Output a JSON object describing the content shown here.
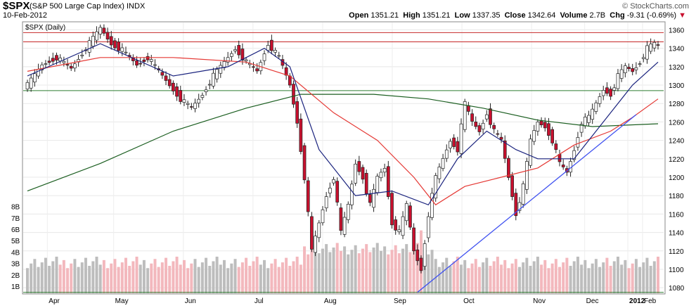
{
  "header": {
    "symbol": "$SPX",
    "description": "(S&P 500 Large Cap Index) INDX",
    "date": "10-Feb-2012",
    "brand": "© StockCharts.com",
    "open_label": "Open",
    "open": "1351.21",
    "high_label": "High",
    "high": "1351.21",
    "low_label": "Low",
    "low": "1337.35",
    "close_label": "Close",
    "close": "1342.64",
    "volume_label": "Volume",
    "volume": "2.7B",
    "chg_label": "Chg",
    "chg": "-9.31 (-0.69%)",
    "chg_arrow": "▼"
  },
  "chart_data": {
    "type": "candlestick",
    "title": "$SPX (Daily)",
    "y_ticks": [
      1080,
      1100,
      1120,
      1140,
      1160,
      1180,
      1200,
      1220,
      1240,
      1260,
      1280,
      1300,
      1320,
      1340,
      1360
    ],
    "ylim": [
      1074,
      1368
    ],
    "x_month_labels": [
      "Apr",
      "May",
      "Jun",
      "Jul",
      "Aug",
      "Sep",
      "Oct",
      "Nov",
      "Dec",
      "2012",
      "Feb"
    ],
    "volume_ticks": [
      "1B",
      "2B",
      "3B",
      "4B",
      "5B",
      "6B",
      "7B",
      "8B"
    ],
    "grid": true,
    "colors": {
      "up": "#ffffff",
      "down": "#c8102e",
      "ma_short": "#1a237e",
      "ma_mid": "#e53935",
      "ma_long": "#1b5e20",
      "trend": "#3f51f0",
      "vol_up": "#bdbdbd",
      "vol_down": "#f3b8bd"
    },
    "horizontal_levels": [
      {
        "value": 1357,
        "color": "#c62828"
      },
      {
        "value": 1347,
        "color": "#c62828"
      },
      {
        "value": 1294,
        "color": "#2e7d32"
      },
      {
        "value": 1075,
        "color": "#2e7d32"
      }
    ],
    "closes": [
      {
        "t": 0,
        "c": 1300
      },
      {
        "t": 4,
        "c": 1322
      },
      {
        "t": 8,
        "c": 1330
      },
      {
        "t": 12,
        "c": 1318
      },
      {
        "t": 16,
        "c": 1340
      },
      {
        "t": 20,
        "c": 1362
      },
      {
        "t": 23,
        "c": 1345
      },
      {
        "t": 26,
        "c": 1338
      },
      {
        "t": 30,
        "c": 1322
      },
      {
        "t": 33,
        "c": 1330
      },
      {
        "t": 36,
        "c": 1315
      },
      {
        "t": 39,
        "c": 1300
      },
      {
        "t": 42,
        "c": 1285
      },
      {
        "t": 45,
        "c": 1275
      },
      {
        "t": 48,
        "c": 1290
      },
      {
        "t": 51,
        "c": 1310
      },
      {
        "t": 54,
        "c": 1325
      },
      {
        "t": 57,
        "c": 1340
      },
      {
        "t": 60,
        "c": 1325
      },
      {
        "t": 63,
        "c": 1315
      },
      {
        "t": 66,
        "c": 1345
      },
      {
        "t": 69,
        "c": 1330
      },
      {
        "t": 72,
        "c": 1300
      },
      {
        "t": 74,
        "c": 1260
      },
      {
        "t": 76,
        "c": 1200
      },
      {
        "t": 78,
        "c": 1120
      },
      {
        "t": 80,
        "c": 1150
      },
      {
        "t": 82,
        "c": 1180
      },
      {
        "t": 84,
        "c": 1200
      },
      {
        "t": 86,
        "c": 1140
      },
      {
        "t": 88,
        "c": 1170
      },
      {
        "t": 90,
        "c": 1215
      },
      {
        "t": 92,
        "c": 1200
      },
      {
        "t": 94,
        "c": 1170
      },
      {
        "t": 96,
        "c": 1200
      },
      {
        "t": 98,
        "c": 1210
      },
      {
        "t": 100,
        "c": 1150
      },
      {
        "t": 102,
        "c": 1140
      },
      {
        "t": 104,
        "c": 1170
      },
      {
        "t": 106,
        "c": 1120
      },
      {
        "t": 108,
        "c": 1100
      },
      {
        "t": 110,
        "c": 1160
      },
      {
        "t": 112,
        "c": 1200
      },
      {
        "t": 114,
        "c": 1220
      },
      {
        "t": 116,
        "c": 1240
      },
      {
        "t": 118,
        "c": 1230
      },
      {
        "t": 120,
        "c": 1280
      },
      {
        "t": 122,
        "c": 1260
      },
      {
        "t": 124,
        "c": 1250
      },
      {
        "t": 126,
        "c": 1270
      },
      {
        "t": 128,
        "c": 1250
      },
      {
        "t": 130,
        "c": 1240
      },
      {
        "t": 132,
        "c": 1200
      },
      {
        "t": 134,
        "c": 1160
      },
      {
        "t": 136,
        "c": 1190
      },
      {
        "t": 138,
        "c": 1240
      },
      {
        "t": 140,
        "c": 1260
      },
      {
        "t": 142,
        "c": 1255
      },
      {
        "t": 144,
        "c": 1240
      },
      {
        "t": 146,
        "c": 1215
      },
      {
        "t": 148,
        "c": 1205
      },
      {
        "t": 150,
        "c": 1230
      },
      {
        "t": 152,
        "c": 1260
      },
      {
        "t": 154,
        "c": 1265
      },
      {
        "t": 156,
        "c": 1280
      },
      {
        "t": 158,
        "c": 1295
      },
      {
        "t": 160,
        "c": 1290
      },
      {
        "t": 162,
        "c": 1310
      },
      {
        "t": 164,
        "c": 1320
      },
      {
        "t": 166,
        "c": 1315
      },
      {
        "t": 168,
        "c": 1325
      },
      {
        "t": 170,
        "c": 1340
      },
      {
        "t": 172,
        "c": 1345
      },
      {
        "t": 173,
        "c": 1343
      }
    ],
    "ma_short_points": [
      [
        0,
        1310
      ],
      [
        20,
        1345
      ],
      [
        40,
        1310
      ],
      [
        55,
        1320
      ],
      [
        65,
        1340
      ],
      [
        72,
        1320
      ],
      [
        80,
        1230
      ],
      [
        90,
        1180
      ],
      [
        100,
        1185
      ],
      [
        110,
        1170
      ],
      [
        118,
        1220
      ],
      [
        126,
        1250
      ],
      [
        134,
        1230
      ],
      [
        140,
        1220
      ],
      [
        150,
        1220
      ],
      [
        160,
        1270
      ],
      [
        166,
        1300
      ],
      [
        173,
        1325
      ]
    ],
    "ma_mid_points": [
      [
        0,
        1315
      ],
      [
        20,
        1330
      ],
      [
        40,
        1330
      ],
      [
        60,
        1325
      ],
      [
        72,
        1310
      ],
      [
        84,
        1270
      ],
      [
        96,
        1240
      ],
      [
        106,
        1200
      ],
      [
        112,
        1170
      ],
      [
        120,
        1190
      ],
      [
        130,
        1200
      ],
      [
        140,
        1210
      ],
      [
        150,
        1235
      ],
      [
        160,
        1250
      ],
      [
        166,
        1265
      ],
      [
        173,
        1285
      ]
    ],
    "ma_long_points": [
      [
        0,
        1185
      ],
      [
        20,
        1215
      ],
      [
        40,
        1250
      ],
      [
        60,
        1275
      ],
      [
        75,
        1290
      ],
      [
        95,
        1290
      ],
      [
        110,
        1285
      ],
      [
        125,
        1275
      ],
      [
        140,
        1262
      ],
      [
        155,
        1255
      ],
      [
        173,
        1258
      ]
    ],
    "trendline": [
      [
        107,
        1075
      ],
      [
        167,
        1268
      ]
    ],
    "volume_scale_max": 8
  }
}
